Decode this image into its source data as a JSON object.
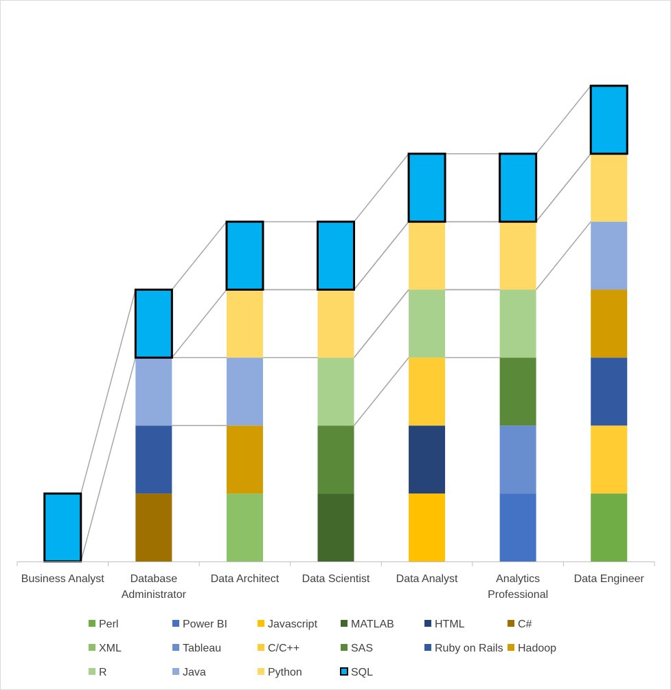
{
  "chart_data": {
    "type": "bar",
    "subtype": "stacked",
    "title": "",
    "xlabel": "",
    "ylabel": "",
    "ylim": [
      0,
      7
    ],
    "categories": [
      "Business Analyst",
      "Database Administrator",
      "Data Architect",
      "Data Scientist",
      "Data Analyst",
      "Analytics Professional",
      "Data Engineer"
    ],
    "category_lines": [
      [
        "Business Analyst"
      ],
      [
        "Database",
        "Administrator"
      ],
      [
        "Data Architect"
      ],
      [
        "Data Scientist"
      ],
      [
        "Data Analyst"
      ],
      [
        "Analytics",
        "Professional"
      ],
      [
        "Data Engineer"
      ]
    ],
    "stacks": [
      [
        "SQL"
      ],
      [
        "C#",
        "Ruby on Rails",
        "Java",
        "SQL"
      ],
      [
        "XML",
        "Hadoop",
        "Java",
        "Python",
        "SQL"
      ],
      [
        "MATLAB",
        "SAS",
        "R",
        "Python",
        "SQL"
      ],
      [
        "Javascript",
        "HTML",
        "C/C++",
        "R",
        "Python",
        "SQL"
      ],
      [
        "Power BI",
        "Tableau",
        "SAS",
        "R",
        "Python",
        "SQL"
      ],
      [
        "Perl",
        "C/C++",
        "Ruby on Rails",
        "Hadoop",
        "Java",
        "Python",
        "SQL"
      ]
    ],
    "segment_value": 1,
    "series": [
      {
        "name": "Perl",
        "color": "#70ad47"
      },
      {
        "name": "Power BI",
        "color": "#4472c4"
      },
      {
        "name": "Javascript",
        "color": "#ffc000"
      },
      {
        "name": "MATLAB",
        "color": "#43682b"
      },
      {
        "name": "HTML",
        "color": "#264478"
      },
      {
        "name": "C#",
        "color": "#9e7000"
      },
      {
        "name": "XML",
        "color": "#8cc168"
      },
      {
        "name": "Tableau",
        "color": "#698ed0"
      },
      {
        "name": "C/C++",
        "color": "#ffcd33"
      },
      {
        "name": "SAS",
        "color": "#5a8a39"
      },
      {
        "name": "Ruby on Rails",
        "color": "#335aa1"
      },
      {
        "name": "Hadoop",
        "color": "#d29b00"
      },
      {
        "name": "R",
        "color": "#a9d18e"
      },
      {
        "name": "Java",
        "color": "#8faadc"
      },
      {
        "name": "Python",
        "color": "#ffd966"
      },
      {
        "name": "SQL",
        "color": "#00b0f0",
        "outlined": true
      }
    ],
    "legend": [
      "Perl",
      "Power BI",
      "Javascript",
      "MATLAB",
      "HTML",
      "C#",
      "XML",
      "Tableau",
      "C/C++",
      "SAS",
      "Ruby on Rails",
      "Hadoop",
      "R",
      "Java",
      "Python",
      "SQL"
    ],
    "legend_position": "bottom",
    "grid": false,
    "series_lines": true
  }
}
